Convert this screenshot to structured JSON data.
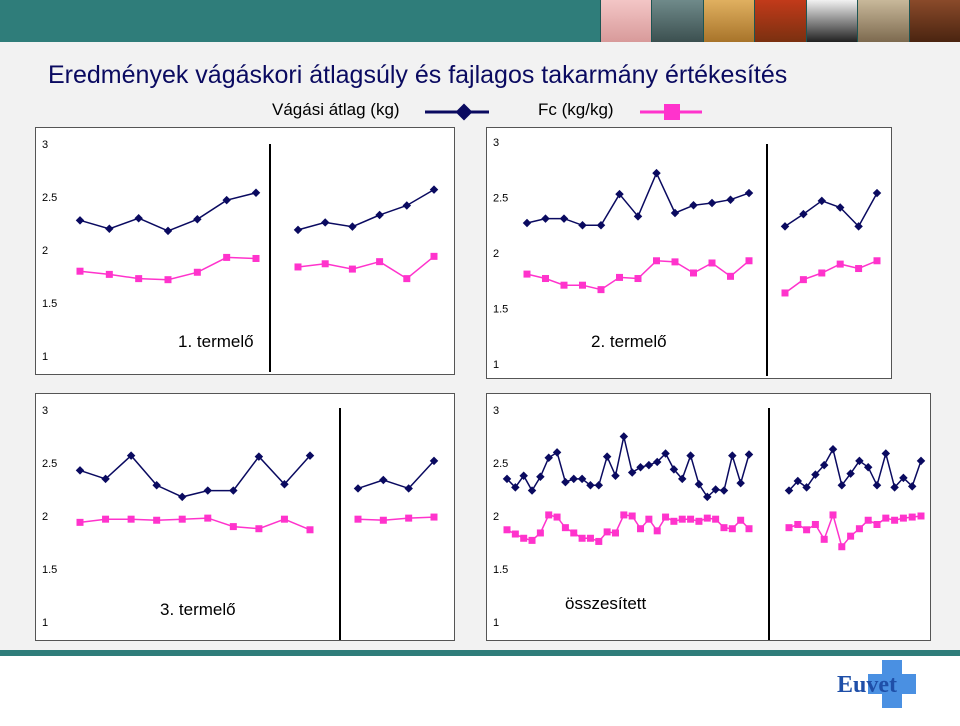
{
  "title": "Eredmények  vágáskori átlagsúly és fajlagos takarmány értékesítés",
  "legend": {
    "series1": {
      "label": "Vágási átlag (kg)",
      "color": "#0a0a60",
      "marker": "diamond"
    },
    "series2": {
      "label": "Fc (kg/kg)",
      "color": "#ff33cc",
      "marker": "square"
    }
  },
  "footer": {
    "logo_text": "Euvet",
    "logo_color": "#1f4fa8",
    "cross_color": "#4a90e2"
  },
  "header_images": [
    "pig-icon",
    "fish-icon",
    "dog-icon",
    "chicken-icon",
    "cow-icon",
    "cat-icon",
    "horse-icon"
  ],
  "chart_data": [
    {
      "type": "line",
      "title": "1. termelő",
      "ylim": [
        1,
        3
      ],
      "yticks": [
        "3",
        "2.5",
        "2",
        "1.5",
        "1"
      ],
      "groups": [
        {
          "series": [
            {
              "name": "Vágási átlag (kg)",
              "values": [
                2.28,
                2.2,
                2.3,
                2.18,
                2.29,
                2.47,
                2.54
              ]
            },
            {
              "name": "Fc (kg/kg)",
              "values": [
                1.8,
                1.77,
                1.73,
                1.72,
                1.79,
                1.93,
                1.92
              ]
            }
          ]
        },
        {
          "series": [
            {
              "name": "Vágási átlag (kg)",
              "values": [
                2.19,
                2.26,
                2.22,
                2.33,
                2.42,
                2.57
              ]
            },
            {
              "name": "Fc (kg/kg)",
              "values": [
                1.84,
                1.87,
                1.82,
                1.89,
                1.73,
                1.94
              ]
            }
          ]
        }
      ]
    },
    {
      "type": "line",
      "title": "2. termelő",
      "ylim": [
        1,
        3
      ],
      "yticks": [
        "3",
        "2.5",
        "2",
        "1.5",
        "1"
      ],
      "groups": [
        {
          "series": [
            {
              "name": "Vágási átlag (kg)",
              "values": [
                2.27,
                2.31,
                2.31,
                2.25,
                2.25,
                2.53,
                2.33,
                2.72,
                2.36,
                2.43,
                2.45,
                2.48,
                2.54
              ]
            },
            {
              "name": "Fc (kg/kg)",
              "values": [
                1.81,
                1.77,
                1.71,
                1.71,
                1.67,
                1.78,
                1.77,
                1.93,
                1.92,
                1.82,
                1.91,
                1.79,
                1.93
              ]
            }
          ]
        },
        {
          "series": [
            {
              "name": "Vágási átlag (kg)",
              "values": [
                2.24,
                2.35,
                2.47,
                2.41,
                2.24,
                2.54
              ]
            },
            {
              "name": "Fc (kg/kg)",
              "values": [
                1.64,
                1.76,
                1.82,
                1.9,
                1.86,
                1.93
              ]
            }
          ]
        }
      ]
    },
    {
      "type": "line",
      "title": "3. termelő",
      "ylim": [
        1,
        3
      ],
      "yticks": [
        "3",
        "2.5",
        "2",
        "1.5",
        "1"
      ],
      "groups": [
        {
          "series": [
            {
              "name": "Vágási átlag (kg)",
              "values": [
                2.43,
                2.35,
                2.57,
                2.29,
                2.18,
                2.24,
                2.24,
                2.56,
                2.3,
                2.57
              ]
            },
            {
              "name": "Fc (kg/kg)",
              "values": [
                1.94,
                1.97,
                1.97,
                1.96,
                1.97,
                1.98,
                1.9,
                1.88,
                1.97,
                1.87
              ]
            }
          ]
        },
        {
          "series": [
            {
              "name": "Vágási átlag (kg)",
              "values": [
                2.26,
                2.34,
                2.26,
                2.52
              ]
            },
            {
              "name": "Fc (kg/kg)",
              "values": [
                1.97,
                1.96,
                1.98,
                1.99
              ]
            }
          ]
        }
      ]
    },
    {
      "type": "line",
      "title": "összesített",
      "ylim": [
        1,
        3
      ],
      "yticks": [
        "3",
        "2.5",
        "2",
        "1.5",
        "1"
      ],
      "groups": [
        {
          "series": [
            {
              "name": "Vágási átlag (kg)",
              "values": [
                2.35,
                2.27,
                2.38,
                2.24,
                2.37,
                2.55,
                2.6,
                2.32,
                2.35,
                2.35,
                2.29,
                2.29,
                2.56,
                2.38,
                2.75,
                2.41,
                2.46,
                2.48,
                2.51,
                2.59,
                2.44,
                2.35,
                2.57,
                2.3,
                2.18,
                2.25,
                2.24,
                2.57,
                2.31,
                2.58
              ]
            },
            {
              "name": "Fc (kg/kg)",
              "values": [
                1.87,
                1.83,
                1.79,
                1.77,
                1.84,
                2.01,
                1.99,
                1.89,
                1.84,
                1.79,
                1.79,
                1.76,
                1.85,
                1.84,
                2.01,
                2.0,
                1.88,
                1.97,
                1.86,
                1.99,
                1.95,
                1.97,
                1.97,
                1.95,
                1.98,
                1.97,
                1.89,
                1.88,
                1.96,
                1.88
              ]
            }
          ]
        },
        {
          "series": [
            {
              "name": "Vágási átlag (kg)",
              "values": [
                2.24,
                2.33,
                2.27,
                2.39,
                2.48,
                2.63,
                2.29,
                2.4,
                2.52,
                2.46,
                2.29,
                2.59,
                2.27,
                2.36,
                2.28,
                2.52
              ]
            },
            {
              "name": "Fc (kg/kg)",
              "values": [
                1.89,
                1.92,
                1.87,
                1.92,
                1.78,
                2.01,
                1.71,
                1.81,
                1.88,
                1.96,
                1.92,
                1.98,
                1.96,
                1.98,
                1.99,
                2.0
              ]
            }
          ]
        }
      ]
    }
  ]
}
